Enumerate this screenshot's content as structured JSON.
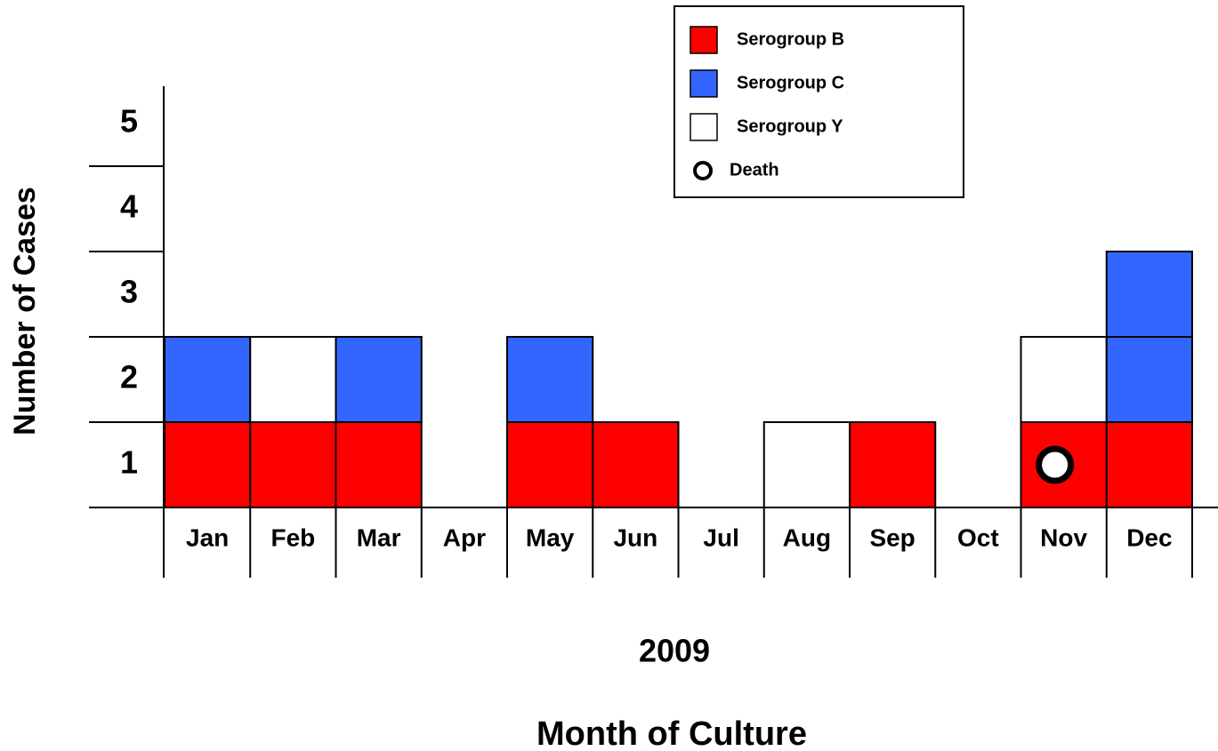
{
  "chart_data": {
    "type": "bar",
    "stacked": true,
    "y_label": "Number of Cases",
    "x_label_year": "2009",
    "x_label": "Month of Culture",
    "categories": [
      "Jan",
      "Feb",
      "Mar",
      "Apr",
      "May",
      "Jun",
      "Jul",
      "Aug",
      "Sep",
      "Oct",
      "Nov",
      "Dec"
    ],
    "series": [
      {
        "name": "Serogroup B",
        "color": "#ff0000",
        "values": [
          1,
          1,
          1,
          0,
          1,
          1,
          0,
          0,
          1,
          0,
          1,
          1
        ]
      },
      {
        "name": "Serogroup C",
        "color": "#3366ff",
        "values": [
          1,
          0,
          1,
          0,
          1,
          0,
          0,
          0,
          0,
          0,
          0,
          2
        ]
      },
      {
        "name": "Serogroup Y",
        "color": "#ffffff",
        "values": [
          0,
          1,
          0,
          0,
          0,
          0,
          0,
          1,
          0,
          0,
          1,
          0
        ]
      }
    ],
    "markers": {
      "name": "Death",
      "values": [
        0,
        0,
        0,
        0,
        0,
        0,
        0,
        0,
        0,
        0,
        1,
        0
      ]
    },
    "ylim": [
      0,
      5
    ],
    "yticks": [
      1,
      2,
      3,
      4,
      5
    ]
  }
}
